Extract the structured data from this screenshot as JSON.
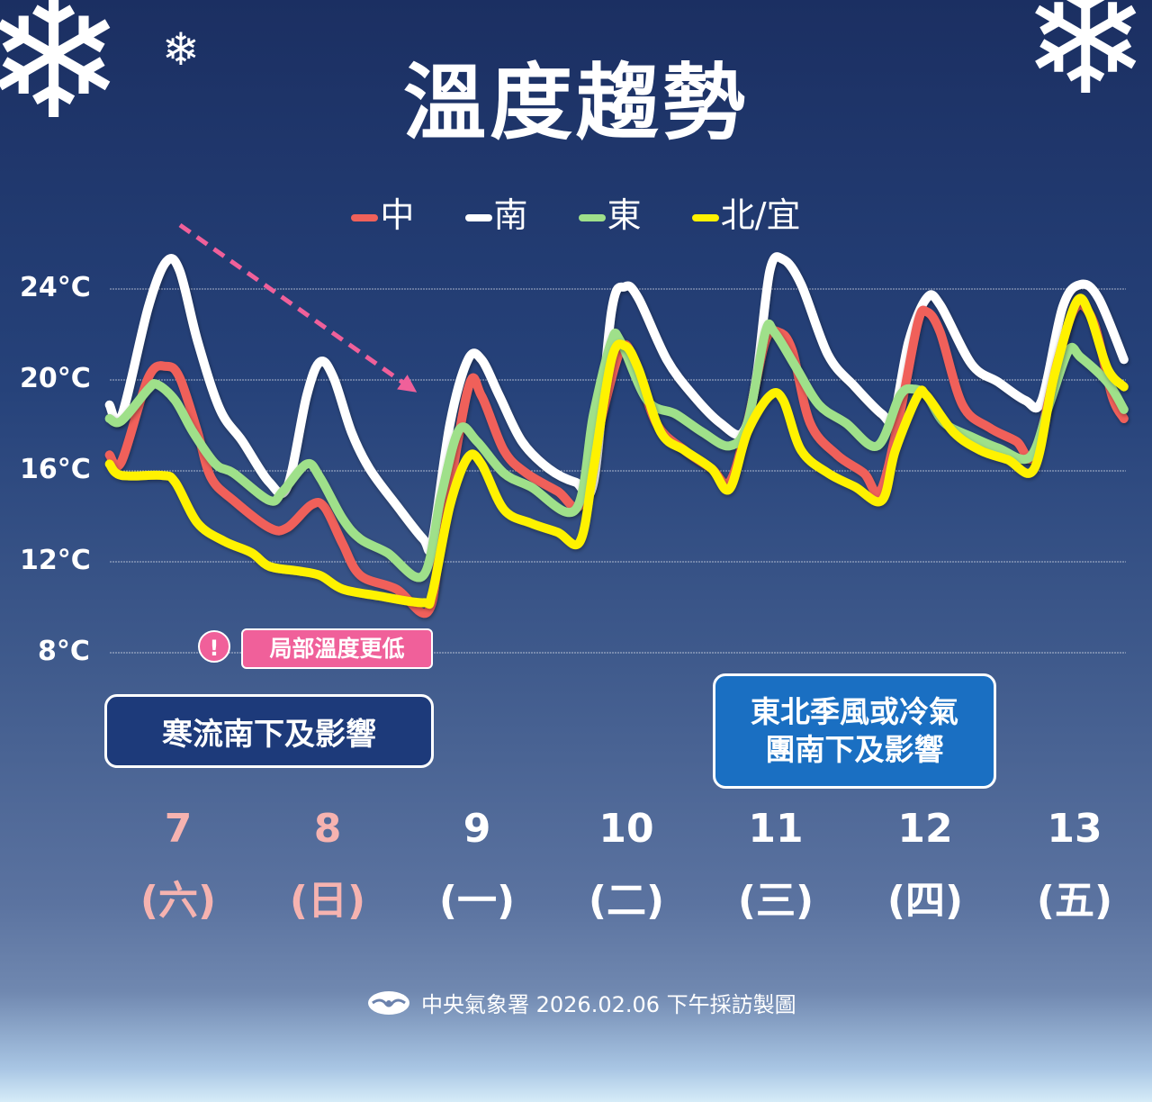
{
  "title": "溫度趨勢",
  "legend": [
    {
      "label": "中",
      "color": "#f0615a"
    },
    {
      "label": "南",
      "color": "#ffffff"
    },
    {
      "label": "東",
      "color": "#9fe08a"
    },
    {
      "label": "北/宜",
      "color": "#fff200"
    }
  ],
  "annotations": {
    "alert_icon": "exclamation-icon",
    "local_colder": "局部溫度更低",
    "cold_surge": "寒流南下及影響",
    "monsoon": "東北季風或冷氣團南下及影響",
    "monsoon_line1": "東北季風或冷氣",
    "monsoon_line2": "團南下及影響",
    "trend_arrow_color": "#f0609a"
  },
  "days": [
    {
      "date": "7",
      "weekday": "(六)",
      "color": "#f6b3b0"
    },
    {
      "date": "8",
      "weekday": "(日)",
      "color": "#f6b3b0"
    },
    {
      "date": "9",
      "weekday": "(一)",
      "color": "#ffffff"
    },
    {
      "date": "10",
      "weekday": "(二)",
      "color": "#ffffff"
    },
    {
      "date": "11",
      "weekday": "(三)",
      "color": "#ffffff"
    },
    {
      "date": "12",
      "weekday": "(四)",
      "color": "#ffffff"
    },
    {
      "date": "13",
      "weekday": "(五)",
      "color": "#ffffff"
    }
  ],
  "footer": {
    "logo": "cwa-logo",
    "text": "中央氣象署 2026.02.06 下午採訪製圖"
  },
  "chart_data": {
    "type": "line",
    "title": "溫度趨勢",
    "xlabel": "",
    "ylabel": "",
    "x_ticks": [
      "7",
      "8",
      "9",
      "10",
      "11",
      "12",
      "13"
    ],
    "y_ticks": [
      "24°C",
      "20°C",
      "16°C",
      "12°C",
      "8°C"
    ],
    "y_tick_values": [
      24,
      20,
      16,
      12,
      8
    ],
    "ylim": [
      8,
      24
    ],
    "grid": true,
    "legend_position": "top",
    "series": [
      {
        "name": "南",
        "color": "#ffffff",
        "points": [
          [
            6.54,
            18.9
          ],
          [
            6.62,
            18.4
          ],
          [
            6.8,
            23.2
          ],
          [
            6.92,
            25.2
          ],
          [
            7.01,
            24.8
          ],
          [
            7.13,
            21.7
          ],
          [
            7.28,
            18.7
          ],
          [
            7.43,
            17.3
          ],
          [
            7.61,
            15.5
          ],
          [
            7.73,
            15.3
          ],
          [
            7.86,
            19.3
          ],
          [
            7.95,
            20.8
          ],
          [
            8.04,
            20.1
          ],
          [
            8.16,
            17.7
          ],
          [
            8.28,
            16.1
          ],
          [
            8.46,
            14.5
          ],
          [
            8.64,
            13.0
          ],
          [
            8.7,
            12.9
          ],
          [
            8.82,
            18.1
          ],
          [
            8.94,
            20.9
          ],
          [
            9.03,
            20.9
          ],
          [
            9.15,
            19.3
          ],
          [
            9.3,
            17.3
          ],
          [
            9.48,
            16.1
          ],
          [
            9.66,
            15.5
          ],
          [
            9.78,
            15.5
          ],
          [
            9.9,
            23.0
          ],
          [
            9.99,
            24.1
          ],
          [
            10.08,
            23.6
          ],
          [
            10.27,
            20.9
          ],
          [
            10.45,
            19.3
          ],
          [
            10.63,
            18.1
          ],
          [
            10.78,
            17.7
          ],
          [
            10.87,
            20.1
          ],
          [
            10.96,
            24.8
          ],
          [
            11.05,
            25.3
          ],
          [
            11.17,
            24.2
          ],
          [
            11.35,
            21.1
          ],
          [
            11.53,
            19.7
          ],
          [
            11.71,
            18.5
          ],
          [
            11.79,
            18.4
          ],
          [
            11.89,
            21.7
          ],
          [
            12.01,
            23.6
          ],
          [
            12.1,
            23.3
          ],
          [
            12.31,
            20.7
          ],
          [
            12.49,
            19.9
          ],
          [
            12.67,
            19.1
          ],
          [
            12.78,
            19.1
          ],
          [
            12.92,
            23.2
          ],
          [
            13.04,
            24.2
          ],
          [
            13.16,
            23.6
          ],
          [
            13.33,
            20.9
          ]
        ]
      },
      {
        "name": "中",
        "color": "#f0615a",
        "points": [
          [
            6.54,
            16.7
          ],
          [
            6.62,
            16.4
          ],
          [
            6.8,
            20.1
          ],
          [
            6.92,
            20.6
          ],
          [
            7.01,
            20.1
          ],
          [
            7.13,
            17.7
          ],
          [
            7.22,
            15.7
          ],
          [
            7.37,
            14.7
          ],
          [
            7.61,
            13.5
          ],
          [
            7.73,
            13.5
          ],
          [
            7.89,
            14.5
          ],
          [
            7.98,
            14.4
          ],
          [
            8.1,
            12.8
          ],
          [
            8.22,
            11.4
          ],
          [
            8.46,
            10.8
          ],
          [
            8.67,
            9.8
          ],
          [
            8.76,
            12.9
          ],
          [
            8.94,
            19.6
          ],
          [
            9.03,
            19.3
          ],
          [
            9.18,
            16.9
          ],
          [
            9.33,
            15.9
          ],
          [
            9.54,
            15.1
          ],
          [
            9.69,
            14.5
          ],
          [
            9.81,
            17.7
          ],
          [
            9.96,
            21.3
          ],
          [
            10.05,
            20.9
          ],
          [
            10.2,
            18.1
          ],
          [
            10.39,
            16.9
          ],
          [
            10.57,
            16.1
          ],
          [
            10.69,
            15.5
          ],
          [
            10.81,
            18.1
          ],
          [
            10.93,
            21.7
          ],
          [
            11.02,
            22.1
          ],
          [
            11.11,
            21.3
          ],
          [
            11.23,
            18.1
          ],
          [
            11.41,
            16.7
          ],
          [
            11.59,
            15.9
          ],
          [
            11.7,
            15.1
          ],
          [
            11.83,
            18.5
          ],
          [
            11.95,
            22.5
          ],
          [
            12.01,
            23.0
          ],
          [
            12.1,
            22.1
          ],
          [
            12.25,
            18.9
          ],
          [
            12.43,
            17.9
          ],
          [
            12.61,
            17.3
          ],
          [
            12.73,
            16.7
          ],
          [
            12.89,
            20.9
          ],
          [
            13.01,
            23.2
          ],
          [
            13.13,
            22.5
          ],
          [
            13.25,
            19.3
          ],
          [
            13.33,
            18.3
          ]
        ]
      },
      {
        "name": "東",
        "color": "#9fe08a",
        "points": [
          [
            6.54,
            18.3
          ],
          [
            6.62,
            18.2
          ],
          [
            6.8,
            19.6
          ],
          [
            6.86,
            19.8
          ],
          [
            6.98,
            19.1
          ],
          [
            7.1,
            17.7
          ],
          [
            7.25,
            16.3
          ],
          [
            7.37,
            15.9
          ],
          [
            7.61,
            14.7
          ],
          [
            7.7,
            15.1
          ],
          [
            7.86,
            16.3
          ],
          [
            7.95,
            15.7
          ],
          [
            8.1,
            13.9
          ],
          [
            8.22,
            13.0
          ],
          [
            8.4,
            12.4
          ],
          [
            8.64,
            11.4
          ],
          [
            8.76,
            14.9
          ],
          [
            8.88,
            17.8
          ],
          [
            9.0,
            17.3
          ],
          [
            9.18,
            15.9
          ],
          [
            9.36,
            15.3
          ],
          [
            9.66,
            14.3
          ],
          [
            9.78,
            18.5
          ],
          [
            9.9,
            21.7
          ],
          [
            9.96,
            21.7
          ],
          [
            10.14,
            19.1
          ],
          [
            10.33,
            18.5
          ],
          [
            10.51,
            17.7
          ],
          [
            10.69,
            17.1
          ],
          [
            10.81,
            18.1
          ],
          [
            10.93,
            22.1
          ],
          [
            10.99,
            22.1
          ],
          [
            11.14,
            20.5
          ],
          [
            11.29,
            18.9
          ],
          [
            11.47,
            18.1
          ],
          [
            11.68,
            17.1
          ],
          [
            11.83,
            19.3
          ],
          [
            11.92,
            19.6
          ],
          [
            12.01,
            19.3
          ],
          [
            12.13,
            18.1
          ],
          [
            12.31,
            17.5
          ],
          [
            12.49,
            17.0
          ],
          [
            12.7,
            16.6
          ],
          [
            12.83,
            18.9
          ],
          [
            12.96,
            21.3
          ],
          [
            13.04,
            21.0
          ],
          [
            13.22,
            19.9
          ],
          [
            13.33,
            18.7
          ]
        ]
      },
      {
        "name": "北/宜",
        "color": "#fff200",
        "points": [
          [
            6.54,
            16.3
          ],
          [
            6.62,
            15.8
          ],
          [
            6.89,
            15.8
          ],
          [
            6.98,
            15.5
          ],
          [
            7.13,
            13.7
          ],
          [
            7.31,
            12.9
          ],
          [
            7.49,
            12.4
          ],
          [
            7.61,
            11.8
          ],
          [
            7.8,
            11.6
          ],
          [
            7.95,
            11.4
          ],
          [
            8.1,
            10.8
          ],
          [
            8.34,
            10.5
          ],
          [
            8.64,
            10.2
          ],
          [
            8.7,
            10.6
          ],
          [
            8.82,
            14.5
          ],
          [
            8.94,
            16.6
          ],
          [
            9.03,
            16.3
          ],
          [
            9.18,
            14.3
          ],
          [
            9.36,
            13.7
          ],
          [
            9.54,
            13.3
          ],
          [
            9.69,
            12.9
          ],
          [
            9.78,
            16.1
          ],
          [
            9.9,
            20.9
          ],
          [
            9.99,
            21.5
          ],
          [
            10.08,
            20.5
          ],
          [
            10.23,
            17.7
          ],
          [
            10.39,
            16.9
          ],
          [
            10.57,
            16.1
          ],
          [
            10.69,
            15.2
          ],
          [
            10.81,
            17.7
          ],
          [
            10.96,
            19.3
          ],
          [
            11.05,
            19.1
          ],
          [
            11.17,
            16.9
          ],
          [
            11.35,
            15.9
          ],
          [
            11.53,
            15.3
          ],
          [
            11.71,
            14.7
          ],
          [
            11.8,
            16.9
          ],
          [
            11.95,
            19.3
          ],
          [
            12.01,
            19.3
          ],
          [
            12.19,
            17.7
          ],
          [
            12.37,
            16.9
          ],
          [
            12.55,
            16.5
          ],
          [
            12.73,
            16.1
          ],
          [
            12.86,
            20.1
          ],
          [
            13.01,
            23.4
          ],
          [
            13.1,
            22.9
          ],
          [
            13.22,
            20.5
          ],
          [
            13.33,
            19.7
          ]
        ]
      }
    ]
  }
}
